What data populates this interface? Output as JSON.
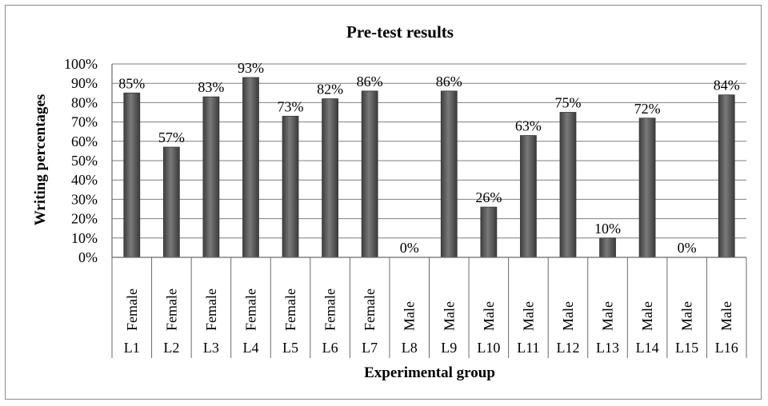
{
  "chart_data": {
    "type": "bar",
    "title": "Pre-test results",
    "xlabel": "Experimental group",
    "ylabel": "Writing percentages",
    "ylim": [
      0,
      100
    ],
    "yticks": [
      "0%",
      "10%",
      "20%",
      "30%",
      "40%",
      "50%",
      "60%",
      "70%",
      "80%",
      "90%",
      "100%"
    ],
    "grid": true,
    "categories": [
      "L1",
      "L2",
      "L3",
      "L4",
      "L5",
      "L6",
      "L7",
      "L8",
      "L9",
      "L10",
      "L11",
      "L12",
      "L13",
      "L14",
      "L15",
      "L16"
    ],
    "genders": [
      "Female",
      "Female",
      "Female",
      "Female",
      "Female",
      "Female",
      "Female",
      "Male",
      "Male",
      "Male",
      "Male",
      "Male",
      "Male",
      "Male",
      "Male",
      "Male"
    ],
    "values": [
      85,
      57,
      83,
      93,
      73,
      82,
      86,
      0,
      86,
      26,
      63,
      75,
      10,
      72,
      0,
      84
    ],
    "data_labels": [
      "85%",
      "57%",
      "83%",
      "93%",
      "73%",
      "82%",
      "86%",
      "0%",
      "86%",
      "26%",
      "63%",
      "75%",
      "10%",
      "72%",
      "0%",
      "84%"
    ],
    "colors": {
      "bar": "#5a5a5a",
      "bar_edge": "#3a3a3a",
      "grid": "#7f7f7f",
      "frame": "#8a8a8a"
    }
  }
}
